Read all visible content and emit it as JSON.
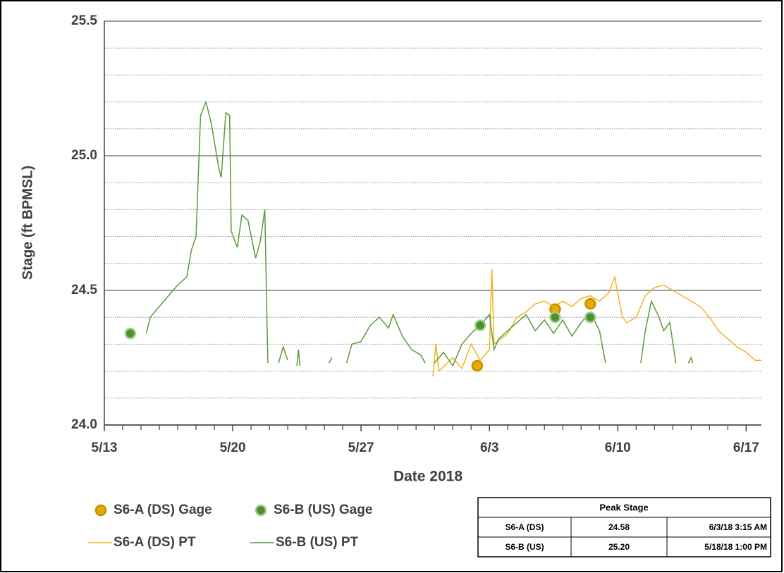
{
  "chart_data": {
    "type": "line",
    "xlabel": "Date 2018",
    "ylabel": "Stage (ft BPMSL)",
    "xlim": [
      "2018-05-13T00:00",
      "2018-06-17T20:00"
    ],
    "xticks": [
      {
        "value": "2018-05-13T00:00",
        "label": "5/13"
      },
      {
        "value": "2018-05-20T00:00",
        "label": "5/20"
      },
      {
        "value": "2018-05-27T00:00",
        "label": "5/27"
      },
      {
        "value": "2018-06-03T00:00",
        "label": "6/3"
      },
      {
        "value": "2018-06-10T00:00",
        "label": "6/10"
      },
      {
        "value": "2018-06-17T00:00",
        "label": "6/17"
      }
    ],
    "xminorticks": [
      "2018-05-14T00:00",
      "2018-05-15T00:00",
      "2018-05-16T00:00",
      "2018-05-17T00:00",
      "2018-05-18T00:00",
      "2018-05-19T00:00",
      "2018-05-21T00:00",
      "2018-05-22T00:00",
      "2018-05-23T00:00",
      "2018-05-24T00:00",
      "2018-05-25T00:00",
      "2018-05-26T00:00",
      "2018-05-28T00:00",
      "2018-05-29T00:00",
      "2018-05-30T00:00",
      "2018-05-31T00:00",
      "2018-06-01T00:00",
      "2018-06-02T00:00",
      "2018-06-04T00:00",
      "2018-06-05T00:00",
      "2018-06-06T00:00",
      "2018-06-07T00:00",
      "2018-06-08T00:00",
      "2018-06-09T00:00",
      "2018-06-11T00:00",
      "2018-06-12T00:00",
      "2018-06-13T00:00",
      "2018-06-14T00:00",
      "2018-06-15T00:00",
      "2018-06-16T00:00"
    ],
    "ylim": [
      24.0,
      25.5
    ],
    "yticks": [
      {
        "value": 24.0,
        "label": "24.0"
      },
      {
        "value": 24.5,
        "label": "24.5"
      },
      {
        "value": 25.0,
        "label": "25.0"
      },
      {
        "value": 25.5,
        "label": "25.5"
      }
    ],
    "yminorticks": [
      24.1,
      24.2,
      24.3,
      24.4,
      24.6,
      24.7,
      24.8,
      24.9,
      25.1,
      25.2,
      25.3,
      25.4
    ],
    "grid": true,
    "series": [
      {
        "name": "S6-A (DS) Gage",
        "type": "scatter",
        "color": "#e8a900",
        "x": [
          "2018-06-02T08:00",
          "2018-06-06T14:00",
          "2018-06-08T12:00"
        ],
        "values": [
          24.22,
          24.43,
          24.45
        ]
      },
      {
        "name": "S6-B (US) Gage",
        "type": "scatter",
        "color": "#4f8f2f",
        "x": [
          "2018-05-14T10:00",
          "2018-06-02T12:00",
          "2018-06-06T14:00",
          "2018-06-08T12:00"
        ],
        "values": [
          24.34,
          24.37,
          24.4,
          24.4
        ]
      },
      {
        "name": "S6-A (DS) PT",
        "type": "line",
        "color": "#f0b41c",
        "x": [
          "2018-05-30T22:00",
          "2018-05-31T02:00",
          "2018-05-31T06:00",
          "2018-06-01T00:00",
          "2018-06-01T12:00",
          "2018-06-02T00:00",
          "2018-06-02T12:00",
          "2018-06-03T00:00",
          "2018-06-03T03:15",
          "2018-06-03T06:00",
          "2018-06-04T00:00",
          "2018-06-04T12:00",
          "2018-06-05T00:00",
          "2018-06-05T12:00",
          "2018-06-06T00:00",
          "2018-06-06T12:00",
          "2018-06-07T00:00",
          "2018-06-07T12:00",
          "2018-06-08T00:00",
          "2018-06-08T12:00",
          "2018-06-09T00:00",
          "2018-06-09T12:00",
          "2018-06-09T20:00",
          "2018-06-10T06:00",
          "2018-06-10T12:00",
          "2018-06-11T00:00",
          "2018-06-11T12:00",
          "2018-06-12T00:00",
          "2018-06-12T12:00",
          "2018-06-13T00:00",
          "2018-06-13T12:00",
          "2018-06-14T00:00",
          "2018-06-14T12:00",
          "2018-06-15T00:00",
          "2018-06-15T12:00",
          "2018-06-16T00:00",
          "2018-06-16T12:00",
          "2018-06-17T00:00",
          "2018-06-17T12:00",
          "2018-06-17T20:00"
        ],
        "values": [
          24.18,
          24.3,
          24.2,
          24.25,
          24.21,
          24.3,
          24.24,
          24.28,
          24.58,
          24.3,
          24.34,
          24.4,
          24.42,
          24.45,
          24.46,
          24.44,
          24.46,
          24.44,
          24.47,
          24.48,
          24.46,
          24.49,
          24.55,
          24.4,
          24.38,
          24.4,
          24.48,
          24.51,
          24.52,
          24.5,
          24.48,
          24.46,
          24.44,
          24.4,
          24.35,
          24.32,
          24.29,
          24.27,
          24.24,
          24.24
        ]
      },
      {
        "name": "S6-B (US) PT",
        "type": "line",
        "color": "#5b9a3c",
        "x": [
          "2018-05-15T07:00",
          "2018-05-15T12:00",
          "2018-05-16T00:00",
          "2018-05-16T12:00",
          "2018-05-17T00:00",
          "2018-05-17T12:00",
          "2018-05-17T18:00",
          "2018-05-18T00:00",
          "2018-05-18T06:00",
          "2018-05-18T13:00",
          "2018-05-18T20:00",
          "2018-05-19T06:00",
          "2018-05-19T09:00",
          "2018-05-19T15:00",
          "2018-05-19T20:00",
          "2018-05-19T22:00",
          "2018-05-20T06:00",
          "2018-05-20T12:00",
          "2018-05-20T20:00",
          "2018-05-21T06:00",
          "2018-05-21T12:00",
          "2018-05-21T18:00",
          "2018-05-21T22:00",
          null,
          "2018-05-22T12:00",
          "2018-05-22T18:00",
          "2018-05-23T00:00",
          null,
          "2018-05-23T12:00",
          "2018-05-23T14:00",
          "2018-05-23T16:00",
          null,
          "2018-05-25T06:00",
          "2018-05-25T10:00",
          null,
          "2018-05-26T05:00",
          "2018-05-26T12:00",
          "2018-05-27T00:00",
          "2018-05-27T12:00",
          "2018-05-28T00:00",
          "2018-05-28T12:00",
          "2018-05-28T18:00",
          "2018-05-29T06:00",
          "2018-05-29T18:00",
          "2018-05-30T06:00",
          "2018-05-30T12:00",
          null,
          "2018-05-31T00:00",
          "2018-05-31T12:00",
          "2018-06-01T00:00",
          "2018-06-01T12:00",
          "2018-06-02T00:00",
          "2018-06-02T12:00",
          "2018-06-03T00:00",
          "2018-06-03T06:00",
          "2018-06-03T12:00",
          "2018-06-04T00:00",
          "2018-06-04T12:00",
          "2018-06-05T00:00",
          "2018-06-05T12:00",
          "2018-06-06T00:00",
          "2018-06-06T12:00",
          "2018-06-07T00:00",
          "2018-06-07T12:00",
          "2018-06-08T00:00",
          "2018-06-08T12:00",
          "2018-06-09T00:00",
          "2018-06-09T08:00",
          null,
          "2018-06-11T06:00",
          "2018-06-11T12:00",
          "2018-06-11T20:00",
          "2018-06-12T06:00",
          "2018-06-12T12:00",
          "2018-06-12T20:00",
          "2018-06-13T04:00",
          null,
          "2018-06-13T20:00",
          "2018-06-14T00:00",
          "2018-06-14T02:00"
        ],
        "values": [
          24.34,
          24.4,
          24.44,
          24.48,
          24.52,
          24.55,
          24.65,
          24.7,
          25.15,
          25.2,
          25.12,
          24.95,
          24.92,
          25.16,
          25.15,
          24.72,
          24.66,
          24.78,
          24.76,
          24.62,
          24.68,
          24.8,
          24.23,
          null,
          24.23,
          24.29,
          24.24,
          null,
          24.22,
          24.28,
          24.22,
          null,
          24.23,
          24.25,
          null,
          24.23,
          24.3,
          24.31,
          24.37,
          24.4,
          24.36,
          24.41,
          24.33,
          24.28,
          24.26,
          24.23,
          null,
          24.23,
          24.27,
          24.22,
          24.3,
          24.34,
          24.37,
          24.41,
          24.28,
          24.32,
          24.35,
          24.38,
          24.41,
          24.35,
          24.39,
          24.34,
          24.39,
          24.33,
          24.38,
          24.42,
          24.35,
          24.23,
          null,
          24.23,
          24.35,
          24.46,
          24.4,
          24.35,
          24.38,
          24.23,
          null,
          24.23,
          24.25,
          24.23
        ]
      }
    ]
  },
  "table": {
    "title": "Peak Stage",
    "rows": [
      [
        "S6-A (DS)",
        "24.58",
        "6/3/18 3:15 AM"
      ],
      [
        "S6-B (US)",
        "25.20",
        "5/18/18 1:00 PM"
      ]
    ]
  }
}
